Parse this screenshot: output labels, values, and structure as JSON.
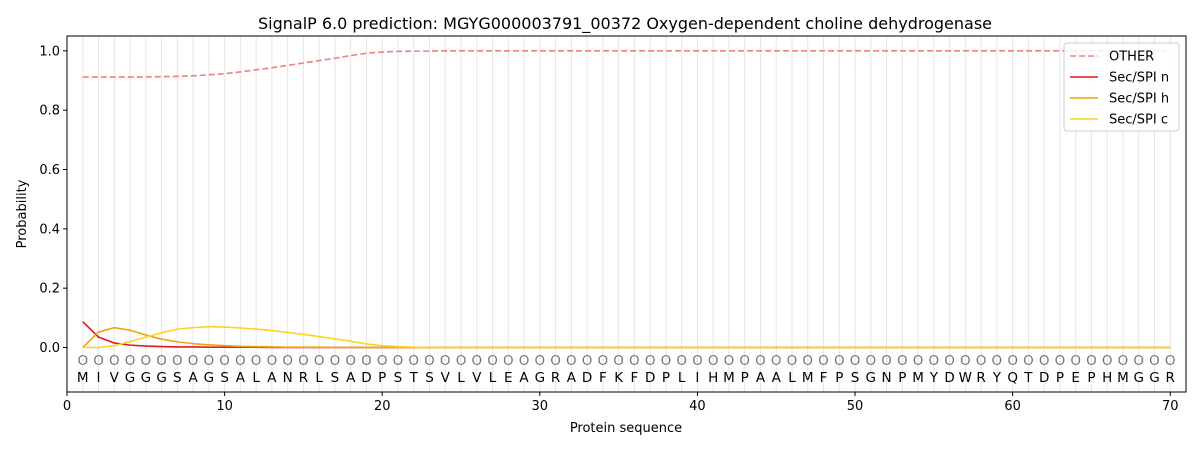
{
  "chart_data": {
    "type": "line",
    "title": "SignalP 6.0 prediction: MGYG000003791_00372 Oxygen-dependent choline dehydrogenase",
    "xlabel": "Protein sequence",
    "ylabel": "Probability",
    "xlim": [
      0,
      71
    ],
    "ylim": [
      -0.15,
      1.05
    ],
    "xticks": [
      "0",
      "10",
      "20",
      "30",
      "40",
      "50",
      "60",
      "70"
    ],
    "yticks": [
      "0.0",
      "0.2",
      "0.4",
      "0.6",
      "0.8",
      "1.0"
    ],
    "grid": "vertical lines at each residue",
    "legend_position": "top-right",
    "sequence": [
      "M",
      "I",
      "V",
      "G",
      "G",
      "G",
      "S",
      "A",
      "G",
      "S",
      "A",
      "L",
      "A",
      "N",
      "R",
      "L",
      "S",
      "A",
      "D",
      "P",
      "S",
      "T",
      "S",
      "V",
      "L",
      "V",
      "L",
      "E",
      "A",
      "G",
      "R",
      "A",
      "D",
      "F",
      "K",
      "F",
      "D",
      "P",
      "L",
      "I",
      "H",
      "M",
      "P",
      "A",
      "A",
      "L",
      "M",
      "F",
      "P",
      "S",
      "G",
      "N",
      "P",
      "M",
      "Y",
      "D",
      "W",
      "R",
      "Y",
      "Q",
      "T",
      "D",
      "P",
      "E",
      "P",
      "H",
      "M",
      "G",
      "G",
      "R"
    ],
    "predicted_labels": [
      "O",
      "O",
      "O",
      "O",
      "O",
      "O",
      "O",
      "O",
      "O",
      "O",
      "O",
      "O",
      "O",
      "O",
      "O",
      "O",
      "O",
      "O",
      "O",
      "O",
      "O",
      "O",
      "O",
      "O",
      "O",
      "O",
      "O",
      "O",
      "O",
      "O",
      "O",
      "O",
      "O",
      "O",
      "O",
      "O",
      "O",
      "O",
      "O",
      "O",
      "O",
      "O",
      "O",
      "O",
      "O",
      "O",
      "O",
      "O",
      "O",
      "O",
      "O",
      "O",
      "O",
      "O",
      "O",
      "O",
      "O",
      "O",
      "O",
      "O",
      "O",
      "O",
      "O",
      "O",
      "O",
      "O",
      "O",
      "O",
      "O",
      "O"
    ],
    "series": [
      {
        "name": "OTHER",
        "color": "#f08080",
        "dashed": true,
        "values": [
          0.912,
          0.912,
          0.912,
          0.912,
          0.912,
          0.913,
          0.914,
          0.916,
          0.919,
          0.923,
          0.929,
          0.936,
          0.943,
          0.951,
          0.959,
          0.967,
          0.975,
          0.984,
          0.992,
          0.996,
          0.998,
          0.999,
          0.999,
          1.0,
          1.0,
          1.0,
          1.0,
          1.0,
          1.0,
          1.0,
          1.0,
          1.0,
          1.0,
          1.0,
          1.0,
          1.0,
          1.0,
          1.0,
          1.0,
          1.0,
          1.0,
          1.0,
          1.0,
          1.0,
          1.0,
          1.0,
          1.0,
          1.0,
          1.0,
          1.0,
          1.0,
          1.0,
          1.0,
          1.0,
          1.0,
          1.0,
          1.0,
          1.0,
          1.0,
          1.0,
          1.0,
          1.0,
          1.0,
          1.0,
          1.0,
          1.0,
          1.0,
          1.0,
          1.0,
          1.0
        ]
      },
      {
        "name": "Sec/SPI n",
        "color": "#e31a1c",
        "dashed": false,
        "values": [
          0.087,
          0.035,
          0.015,
          0.008,
          0.005,
          0.003,
          0.002,
          0.002,
          0.001,
          0.001,
          0.001,
          0.001,
          0.0,
          0.0,
          0.0,
          0.0,
          0.0,
          0.0,
          0.0,
          0.0,
          0.0,
          0.0,
          0.0,
          0.0,
          0.0,
          0.0,
          0.0,
          0.0,
          0.0,
          0.0,
          0.0,
          0.0,
          0.0,
          0.0,
          0.0,
          0.0,
          0.0,
          0.0,
          0.0,
          0.0,
          0.0,
          0.0,
          0.0,
          0.0,
          0.0,
          0.0,
          0.0,
          0.0,
          0.0,
          0.0,
          0.0,
          0.0,
          0.0,
          0.0,
          0.0,
          0.0,
          0.0,
          0.0,
          0.0,
          0.0,
          0.0,
          0.0,
          0.0,
          0.0,
          0.0,
          0.0,
          0.0,
          0.0,
          0.0,
          0.0
        ]
      },
      {
        "name": "Sec/SPI h",
        "color": "#f5a30a",
        "dashed": false,
        "values": [
          0.0,
          0.052,
          0.067,
          0.058,
          0.042,
          0.028,
          0.019,
          0.013,
          0.009,
          0.006,
          0.004,
          0.003,
          0.002,
          0.001,
          0.001,
          0.001,
          0.0,
          0.0,
          0.0,
          0.0,
          0.0,
          0.0,
          0.0,
          0.0,
          0.0,
          0.0,
          0.0,
          0.0,
          0.0,
          0.0,
          0.0,
          0.0,
          0.0,
          0.0,
          0.0,
          0.0,
          0.0,
          0.0,
          0.0,
          0.0,
          0.0,
          0.0,
          0.0,
          0.0,
          0.0,
          0.0,
          0.0,
          0.0,
          0.0,
          0.0,
          0.0,
          0.0,
          0.0,
          0.0,
          0.0,
          0.0,
          0.0,
          0.0,
          0.0,
          0.0,
          0.0,
          0.0,
          0.0,
          0.0,
          0.0,
          0.0,
          0.0,
          0.0,
          0.0,
          0.0
        ]
      },
      {
        "name": "Sec/SPI c",
        "color": "#ffd21f",
        "dashed": false,
        "values": [
          0.0,
          0.0,
          0.006,
          0.02,
          0.035,
          0.05,
          0.062,
          0.067,
          0.07,
          0.069,
          0.066,
          0.062,
          0.057,
          0.051,
          0.044,
          0.037,
          0.029,
          0.021,
          0.012,
          0.006,
          0.003,
          0.001,
          0.0,
          0.0,
          0.0,
          0.0,
          0.0,
          0.0,
          0.0,
          0.0,
          0.0,
          0.0,
          0.0,
          0.0,
          0.0,
          0.0,
          0.0,
          0.0,
          0.0,
          0.0,
          0.0,
          0.0,
          0.0,
          0.0,
          0.0,
          0.0,
          0.0,
          0.0,
          0.0,
          0.0,
          0.0,
          0.0,
          0.0,
          0.0,
          0.0,
          0.0,
          0.0,
          0.0,
          0.0,
          0.0,
          0.0,
          0.0,
          0.0,
          0.0,
          0.0,
          0.0,
          0.0,
          0.0,
          0.0,
          0.0
        ]
      }
    ]
  }
}
